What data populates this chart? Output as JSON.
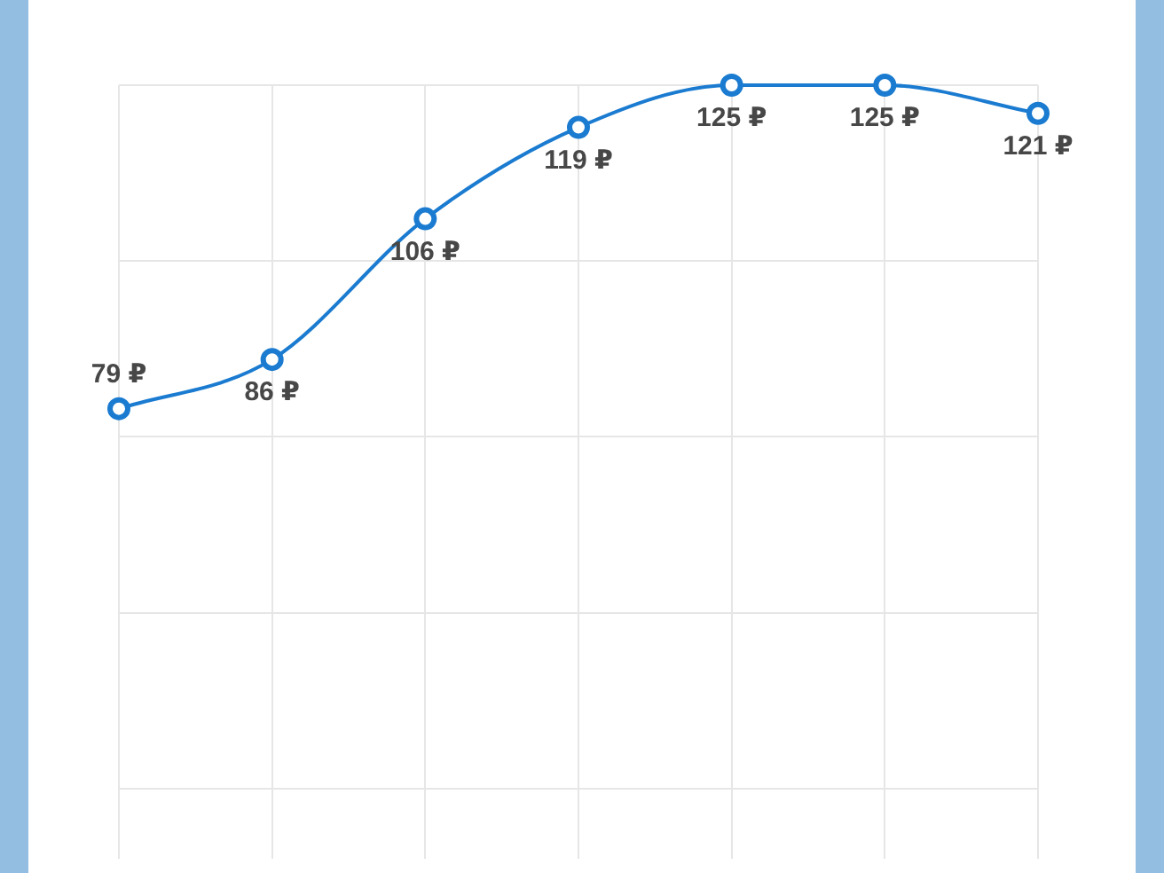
{
  "chart_data": {
    "type": "line",
    "categories": [
      null,
      null,
      null,
      null,
      null,
      null,
      null
    ],
    "values": [
      79,
      86,
      106,
      119,
      125,
      125,
      121
    ],
    "color": "#1a7bd0",
    "value_labels": [
      "79 ₽",
      "86 ₽",
      "106 ₽",
      "119 ₽",
      "125 ₽",
      "125 ₽",
      "121 ₽"
    ],
    "ylim": [
      15,
      125
    ],
    "yticks": [
      {
        "value": 25,
        "label": null
      },
      {
        "value": 50,
        "label": null
      },
      {
        "value": 75,
        "label": null
      },
      {
        "value": 100,
        "label": null
      },
      {
        "value": 125,
        "label": null
      }
    ],
    "grid": true,
    "tick_labels": false,
    "marker": "circle"
  }
}
